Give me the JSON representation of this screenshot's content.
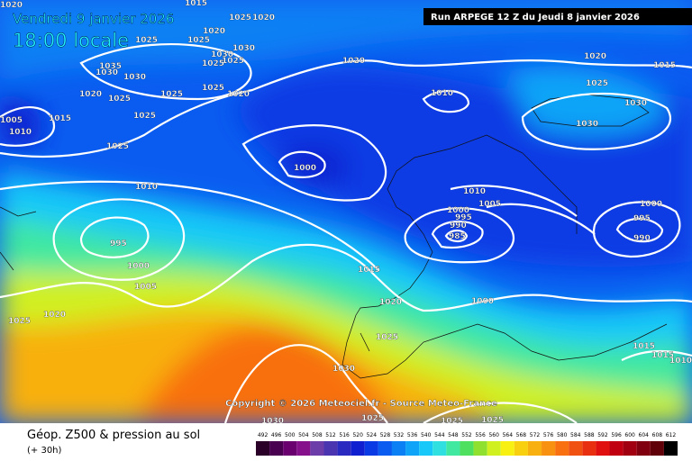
{
  "header": {
    "date": "Vendredi 9 janvier 2026",
    "time": "18:00 locale",
    "run": "Run ARPEGE 12 Z du Jeudi 8 janvier 2026"
  },
  "copyright": "Copyright © 2026 Meteociel.fr - Source Meteo-France",
  "footer": {
    "title": "Géop. Z500 & pression au sol",
    "subtitle": "(+ 30h)"
  },
  "isobar_labels": [
    1020,
    1015,
    1025,
    1020,
    1025,
    1025,
    1020,
    1030,
    1030,
    1025,
    1035,
    1030,
    1030,
    1025,
    1020,
    1025,
    1025,
    1025,
    1020,
    1025,
    1005,
    1015,
    1010,
    1025,
    1020,
    1020,
    1015,
    1025,
    1010,
    1030,
    1030,
    1000,
    1010,
    1010,
    1005,
    1000,
    1000,
    995,
    995,
    990,
    985,
    990,
    995,
    1000,
    1015,
    1005,
    1020,
    1000,
    1025,
    1020,
    1025,
    1015,
    1015,
    1010,
    1030,
    1030,
    1025,
    1025,
    1025
  ],
  "legend": {
    "values": [
      492,
      496,
      500,
      504,
      508,
      512,
      516,
      520,
      524,
      528,
      532,
      536,
      540,
      544,
      548,
      552,
      556,
      560,
      564,
      568,
      572,
      576,
      580,
      584,
      588,
      592,
      596,
      600,
      604,
      608,
      612
    ],
    "colors": [
      "#2a0028",
      "#4a0050",
      "#6a0070",
      "#86108c",
      "#6c3ca8",
      "#4a34b0",
      "#2a2ac0",
      "#1020d0",
      "#0a3ae4",
      "#0a5cf0",
      "#0a80f4",
      "#10a4f8",
      "#18c8f8",
      "#30e0e0",
      "#40e8a0",
      "#50e060",
      "#90e030",
      "#d0f020",
      "#f8f010",
      "#f8d010",
      "#f8b010",
      "#f89010",
      "#f87010",
      "#f05010",
      "#e83010",
      "#e01010",
      "#c00010",
      "#a00010",
      "#800010",
      "#600008",
      "#000000"
    ]
  }
}
